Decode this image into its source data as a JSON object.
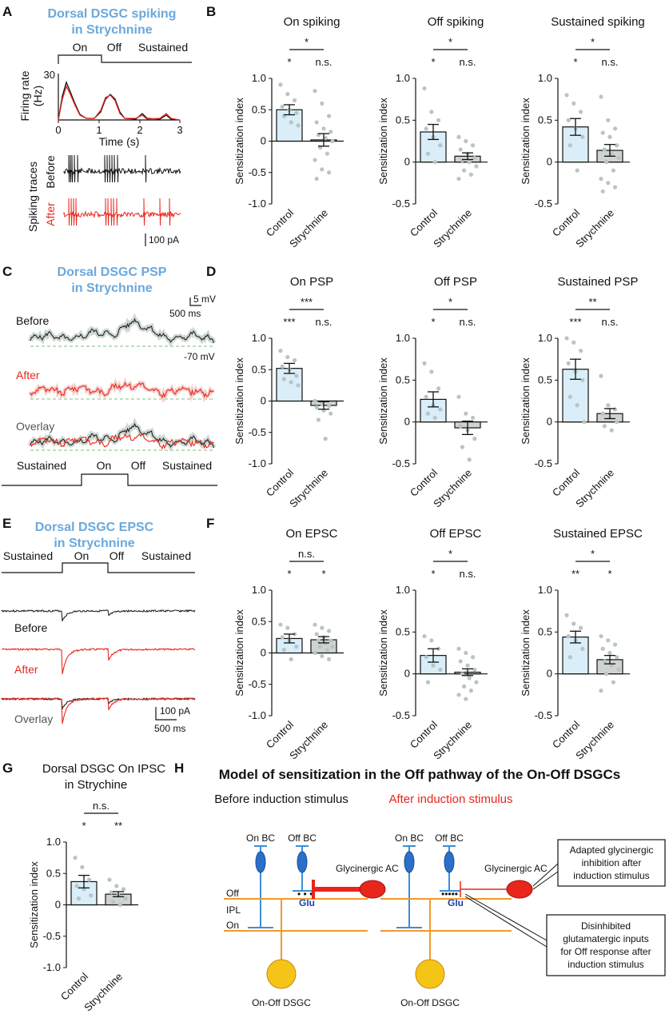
{
  "panel_letters": {
    "A": "A",
    "B": "B",
    "C": "C",
    "D": "D",
    "E": "E",
    "F": "F",
    "G": "G",
    "H": "H"
  },
  "panelA": {
    "title_line1": "Dorsal DSGC spiking",
    "title_line2": "in Strychnine",
    "stim_on": "On",
    "stim_off": "Off",
    "stim_sustained": "Sustained",
    "ylabel_line1": "Firing rate",
    "ylabel_line2": "(Hz)",
    "y_max_label": "30",
    "x_ticks": [
      "0",
      "1",
      "2",
      "3"
    ],
    "xlabel": "Time (s)",
    "traces_label": "Spiking traces",
    "before_label": "Before",
    "after_label": "After",
    "scale_label": "100 pA"
  },
  "panelC": {
    "title_line1": "Dorsal DSGC PSP",
    "title_line2": "in Strychnine",
    "before_label": "Before",
    "after_label": "After",
    "overlay_label": "Overlay",
    "scale_v": "5 mV",
    "scale_t": "500 ms",
    "baseline_label": "-70 mV",
    "stim_sustained_left": "Sustained",
    "stim_on": "On",
    "stim_off": "Off",
    "stim_sustained_right": "Sustained"
  },
  "panelE": {
    "title_line1": "Dorsal DSGC EPSC",
    "title_line2": "in Strychnine",
    "stim_sustained_left": "Sustained",
    "stim_on": "On",
    "stim_off": "Off",
    "stim_sustained_right": "Sustained",
    "before_label": "Before",
    "after_label": "After",
    "overlay_label": "Overlay",
    "scale_i": "100 pA",
    "scale_t": "500 ms"
  },
  "panelG": {
    "title_line1": "Dorsal DSGC On IPSC",
    "title_line2": "in Strychine"
  },
  "panelH": {
    "title": "Model of sensitization in the Off pathway of the On-Off DSGCs",
    "before_title": "Before induction stimulus",
    "after_title": "After induction stimulus",
    "on_bc": "On BC",
    "off_bc": "Off BC",
    "glycinergic_ac": "Glycinergic AC",
    "glu": "Glu",
    "off_layer": "Off",
    "ipl": "IPL",
    "on_layer": "On",
    "dsgc": "On-Off DSGC",
    "box1": [
      "Adapted glycinergic",
      "inhibition after",
      "induction stimulus"
    ],
    "box2": [
      "Disinhibited",
      "glutamatergic inputs",
      "for Off response after",
      "induction stimulus"
    ]
  },
  "colors": {
    "control_fill": "#d9eef9",
    "strychnine_fill": "#cfd3d2",
    "dot": "#b9c4c4",
    "blue_cell": "#3a8fd8",
    "orange": "#f09a2a",
    "red": "#e8261c",
    "yellow": "#f6c417",
    "title_blue": "#6aa8dc"
  },
  "chart_data": [
    {
      "id": "B1",
      "type": "bar",
      "title": "On spiking",
      "ylabel": "Sensitization index",
      "ylim": [
        -1.0,
        1.0
      ],
      "yticks": [
        "1.0",
        "0.5",
        "0",
        "-0.5",
        "-1.0"
      ],
      "categories": [
        "Control",
        "Strychnine"
      ],
      "values": [
        0.5,
        0.02
      ],
      "errors": [
        0.08,
        0.1
      ],
      "points": [
        [
          0.9,
          0.75,
          0.65,
          0.55,
          0.5,
          0.45,
          0.4,
          0.3,
          0.25
        ],
        [
          0.8,
          0.6,
          0.4,
          0.3,
          0.2,
          0.15,
          0.1,
          0.05,
          0,
          -0.1,
          -0.2,
          -0.3,
          -0.45,
          -0.5,
          -0.6
        ]
      ],
      "sig_top": "*",
      "sig_left": "*",
      "sig_right": "n.s."
    },
    {
      "id": "B2",
      "type": "bar",
      "title": "Off spiking",
      "ylabel": "Sensitization index",
      "ylim": [
        -0.5,
        1.0
      ],
      "yticks": [
        "1.0",
        "0.5",
        "0",
        "-0.5"
      ],
      "categories": [
        "Control",
        "Strychnine"
      ],
      "values": [
        0.36,
        0.07
      ],
      "errors": [
        0.09,
        0.04
      ],
      "points": [
        [
          0.88,
          0.6,
          0.5,
          0.4,
          0.3,
          0.2,
          0.1,
          0.0
        ],
        [
          0.3,
          0.25,
          0.2,
          0.15,
          0.1,
          0.05,
          0.02,
          0,
          -0.05,
          -0.1,
          -0.15,
          -0.2
        ]
      ],
      "sig_top": "*",
      "sig_left": "*",
      "sig_right": "n.s."
    },
    {
      "id": "B3",
      "type": "bar",
      "title": "Sustained spiking",
      "ylabel": "Sensitization index",
      "ylim": [
        -0.5,
        1.0
      ],
      "yticks": [
        "1.0",
        "0.5",
        "0",
        "-0.5"
      ],
      "categories": [
        "Control",
        "Strychnine"
      ],
      "values": [
        0.42,
        0.14
      ],
      "errors": [
        0.1,
        0.07
      ],
      "points": [
        [
          0.8,
          0.7,
          0.6,
          0.5,
          0.4,
          0.3,
          0.2,
          -0.1
        ],
        [
          0.78,
          0.5,
          0.4,
          0.35,
          0.3,
          0.2,
          0.15,
          0.1,
          0.05,
          0,
          -0.1,
          -0.2,
          -0.25,
          -0.3,
          -0.35
        ]
      ],
      "sig_top": "*",
      "sig_left": "*",
      "sig_right": "n.s."
    },
    {
      "id": "D1",
      "type": "bar",
      "title": "On PSP",
      "ylabel": "Sensitization index",
      "ylim": [
        -1.0,
        1.0
      ],
      "yticks": [
        "1.0",
        "0.5",
        "0",
        "-0.5",
        "-1.0"
      ],
      "categories": [
        "Control",
        "Strychnine"
      ],
      "values": [
        0.52,
        -0.07
      ],
      "errors": [
        0.08,
        0.06
      ],
      "points": [
        [
          0.8,
          0.7,
          0.65,
          0.55,
          0.5,
          0.4,
          0.35,
          0.3,
          0.25
        ],
        [
          0.0,
          -0.05,
          -0.08,
          -0.1,
          -0.15,
          -0.2,
          -0.3,
          -0.6
        ]
      ],
      "sig_top": "***",
      "sig_left": "***",
      "sig_right": "n.s."
    },
    {
      "id": "D2",
      "type": "bar",
      "title": "Off PSP",
      "ylabel": "Sensitization index",
      "ylim": [
        -0.5,
        1.0
      ],
      "yticks": [
        "1.0",
        "0.5",
        "0",
        "-0.5"
      ],
      "categories": [
        "Control",
        "Strychnine"
      ],
      "values": [
        0.27,
        -0.07
      ],
      "errors": [
        0.09,
        0.08
      ],
      "points": [
        [
          0.7,
          0.6,
          0.4,
          0.3,
          0.2,
          0.15,
          0.1,
          0.05
        ],
        [
          0.3,
          0.1,
          0.05,
          -0.05,
          -0.1,
          -0.2,
          -0.3,
          -0.45
        ]
      ],
      "sig_top": "*",
      "sig_left": "*",
      "sig_right": "n.s."
    },
    {
      "id": "D3",
      "type": "bar",
      "title": "Sustained PSP",
      "ylabel": "Sensitization index",
      "ylim": [
        -0.5,
        1.0
      ],
      "yticks": [
        "1.0",
        "0.5",
        "0",
        "-0.5"
      ],
      "categories": [
        "Control",
        "Strychnine"
      ],
      "values": [
        0.63,
        0.1
      ],
      "errors": [
        0.12,
        0.06
      ],
      "points": [
        [
          1.0,
          0.95,
          0.85,
          0.7,
          0.6,
          0.5,
          0.3,
          0.2,
          0.0
        ],
        [
          0.55,
          0.2,
          0.15,
          0.1,
          0.05,
          0.0,
          -0.05,
          -0.1
        ]
      ],
      "sig_top": "**",
      "sig_left": "***",
      "sig_right": "n.s."
    },
    {
      "id": "F1",
      "type": "bar",
      "title": "On EPSC",
      "ylabel": "Sensitization index",
      "ylim": [
        -1.0,
        1.0
      ],
      "yticks": [
        "1.0",
        "0.5",
        "0",
        "-0.5",
        "-1.0"
      ],
      "categories": [
        "Control",
        "Strychnine"
      ],
      "values": [
        0.23,
        0.21
      ],
      "errors": [
        0.07,
        0.05
      ],
      "points": [
        [
          0.45,
          0.4,
          0.3,
          0.25,
          0.2,
          0.1,
          0.05,
          -0.1
        ],
        [
          0.45,
          0.4,
          0.35,
          0.3,
          0.25,
          0.2,
          0.2,
          0.15,
          0.1,
          0.1,
          0.05,
          0.0,
          -0.05,
          -0.1
        ]
      ],
      "sig_top": "n.s.",
      "sig_left": "*",
      "sig_right": "*"
    },
    {
      "id": "F2",
      "type": "bar",
      "title": "Off EPSC",
      "ylabel": "Sensitization index",
      "ylim": [
        -0.5,
        1.0
      ],
      "yticks": [
        "1.0",
        "0.5",
        "0",
        "-0.5"
      ],
      "categories": [
        "Control",
        "Strychnine"
      ],
      "values": [
        0.22,
        0.02
      ],
      "errors": [
        0.08,
        0.04
      ],
      "points": [
        [
          0.45,
          0.4,
          0.3,
          0.2,
          0.1,
          0.05,
          -0.1
        ],
        [
          0.3,
          0.25,
          0.2,
          0.15,
          0.1,
          0.05,
          0.0,
          -0.05,
          -0.1,
          -0.15,
          -0.2,
          -0.25,
          -0.3
        ]
      ],
      "sig_top": "*",
      "sig_left": "*",
      "sig_right": "n.s."
    },
    {
      "id": "F3",
      "type": "bar",
      "title": "Sustained EPSC",
      "ylabel": "Sensitization index",
      "ylim": [
        -0.5,
        1.0
      ],
      "yticks": [
        "1.0",
        "0.5",
        "0",
        "-0.5"
      ],
      "categories": [
        "Control",
        "Strychnine"
      ],
      "values": [
        0.44,
        0.17
      ],
      "errors": [
        0.07,
        0.05
      ],
      "points": [
        [
          0.7,
          0.6,
          0.55,
          0.45,
          0.4,
          0.3,
          0.2
        ],
        [
          0.45,
          0.4,
          0.35,
          0.3,
          0.25,
          0.2,
          0.15,
          0.1,
          0.05,
          0.0,
          -0.1,
          -0.2
        ]
      ],
      "sig_top": "*",
      "sig_left": "**",
      "sig_right": "*"
    },
    {
      "id": "G1",
      "type": "bar",
      "title": "",
      "ylabel": "Sensitization index",
      "ylim": [
        -1.0,
        1.0
      ],
      "yticks": [
        "1.0",
        "0.5",
        "0",
        "-0.5",
        "-1.0"
      ],
      "categories": [
        "Control",
        "Strychnine"
      ],
      "values": [
        0.37,
        0.17
      ],
      "errors": [
        0.1,
        0.04
      ],
      "points": [
        [
          0.75,
          0.6,
          0.4,
          0.3,
          0.25,
          0.15,
          0.1
        ],
        [
          0.4,
          0.3,
          0.25,
          0.2,
          0.15,
          0.1,
          0.05,
          0.0
        ]
      ],
      "sig_top": "n.s.",
      "sig_left": "*",
      "sig_right": "**"
    }
  ]
}
